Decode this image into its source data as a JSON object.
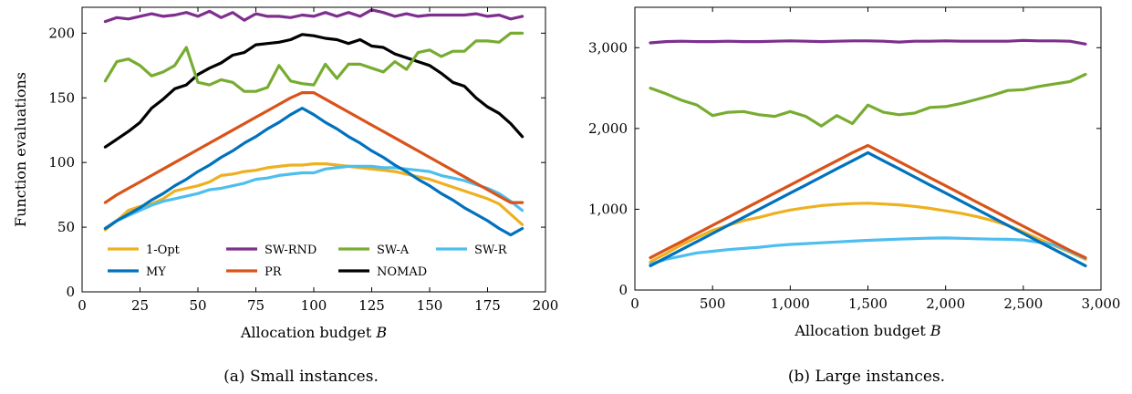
{
  "chart_data": [
    {
      "type": "line",
      "caption": "(a) Small instances.",
      "xlabel": "Allocation budget",
      "xlabel_var": "B",
      "ylabel": "Function evaluations",
      "xlim": [
        0,
        200
      ],
      "ylim": [
        0,
        220
      ],
      "xticks": [
        0,
        25,
        50,
        75,
        100,
        125,
        150,
        175,
        200
      ],
      "yticks": [
        0,
        50,
        100,
        150,
        200
      ],
      "grid": false,
      "legend": "bottom-inside, 4 columns",
      "x": [
        10,
        15,
        20,
        25,
        30,
        35,
        40,
        45,
        50,
        55,
        60,
        65,
        70,
        75,
        80,
        85,
        90,
        95,
        100,
        105,
        110,
        115,
        120,
        125,
        130,
        135,
        140,
        145,
        150,
        155,
        160,
        165,
        170,
        175,
        180,
        185,
        190
      ],
      "series": [
        {
          "name": "1-Opt",
          "color": "#edb120",
          "values": [
            48,
            55,
            63,
            66,
            68,
            72,
            78,
            80,
            82,
            85,
            90,
            91,
            93,
            94,
            96,
            97,
            98,
            98,
            99,
            99,
            98,
            97,
            96,
            95,
            94,
            93,
            91,
            89,
            87,
            84,
            81,
            78,
            75,
            72,
            68,
            60,
            52
          ]
        },
        {
          "name": "SW-RND",
          "color": "#7e2f8e",
          "values": [
            209,
            212,
            211,
            213,
            215,
            213,
            214,
            216,
            213,
            217,
            212,
            216,
            210,
            215,
            213,
            213,
            212,
            214,
            213,
            216,
            213,
            216,
            213,
            218,
            216,
            213,
            215,
            213,
            214,
            214,
            214,
            214,
            215,
            213,
            214,
            211,
            213
          ]
        },
        {
          "name": "SW-A",
          "color": "#77ac30",
          "values": [
            163,
            178,
            180,
            175,
            167,
            170,
            175,
            189,
            162,
            160,
            164,
            162,
            155,
            155,
            158,
            175,
            163,
            161,
            160,
            176,
            165,
            176,
            176,
            173,
            170,
            178,
            172,
            185,
            187,
            182,
            186,
            186,
            194,
            194,
            193,
            200,
            200
          ]
        },
        {
          "name": "SW-R",
          "color": "#4dbeee",
          "values": [
            49,
            55,
            59,
            63,
            67,
            70,
            72,
            74,
            76,
            79,
            80,
            82,
            84,
            87,
            88,
            90,
            91,
            92,
            92,
            95,
            96,
            97,
            97,
            97,
            96,
            96,
            95,
            94,
            93,
            90,
            88,
            86,
            83,
            80,
            76,
            70,
            63
          ]
        },
        {
          "name": "MY",
          "color": "#0072bd",
          "values": [
            49,
            55,
            60,
            65,
            71,
            76,
            82,
            87,
            93,
            98,
            104,
            109,
            115,
            120,
            126,
            131,
            137,
            142,
            137,
            131,
            126,
            120,
            115,
            109,
            104,
            98,
            93,
            87,
            82,
            76,
            71,
            65,
            60,
            55,
            49,
            44,
            49
          ]
        },
        {
          "name": "PR",
          "color": "#d95319",
          "values": [
            69,
            75,
            80,
            85,
            90,
            95,
            100,
            105,
            110,
            115,
            120,
            125,
            130,
            135,
            140,
            145,
            150,
            154,
            154,
            149,
            144,
            139,
            134,
            129,
            124,
            119,
            114,
            109,
            104,
            99,
            94,
            89,
            84,
            79,
            74,
            69,
            69
          ]
        },
        {
          "name": "NOMAD",
          "color": "#000000",
          "values": [
            112,
            118,
            124,
            131,
            142,
            149,
            157,
            160,
            168,
            173,
            177,
            183,
            185,
            191,
            192,
            193,
            195,
            199,
            198,
            196,
            195,
            192,
            195,
            190,
            189,
            184,
            181,
            178,
            175,
            169,
            162,
            159,
            150,
            143,
            138,
            130,
            120
          ]
        }
      ]
    },
    {
      "type": "line",
      "caption": "(b) Large instances.",
      "xlabel": "Allocation budget",
      "xlabel_var": "B",
      "ylabel": "",
      "xlim": [
        0,
        3000
      ],
      "ylim": [
        0,
        3500
      ],
      "xticks": [
        0,
        500,
        1000,
        1500,
        2000,
        2500,
        3000
      ],
      "xtick_labels": [
        "0",
        "500",
        "1,000",
        "1,500",
        "2,000",
        "2,500",
        "3,000"
      ],
      "yticks": [
        0,
        1000,
        2000,
        3000
      ],
      "ytick_labels": [
        "0",
        "1,000",
        "2,000",
        "3,000"
      ],
      "grid": false,
      "x": [
        100,
        200,
        300,
        400,
        500,
        600,
        700,
        800,
        900,
        1000,
        1100,
        1200,
        1300,
        1400,
        1500,
        1600,
        1700,
        1800,
        1900,
        2000,
        2100,
        2200,
        2300,
        2400,
        2500,
        2600,
        2700,
        2800,
        2900
      ],
      "series": [
        {
          "name": "1-Opt",
          "color": "#edb120",
          "values": [
            350,
            450,
            560,
            650,
            740,
            800,
            860,
            900,
            950,
            990,
            1020,
            1045,
            1060,
            1070,
            1075,
            1065,
            1055,
            1035,
            1010,
            980,
            950,
            910,
            860,
            800,
            720,
            630,
            550,
            470,
            380
          ]
        },
        {
          "name": "SW-RND",
          "color": "#7e2f8e",
          "values": [
            3060,
            3075,
            3080,
            3075,
            3075,
            3080,
            3075,
            3075,
            3080,
            3085,
            3080,
            3075,
            3080,
            3085,
            3085,
            3080,
            3070,
            3080,
            3080,
            3085,
            3080,
            3080,
            3080,
            3080,
            3090,
            3085,
            3085,
            3080,
            3045
          ]
        },
        {
          "name": "SW-A",
          "color": "#77ac30",
          "values": [
            2500,
            2430,
            2350,
            2290,
            2160,
            2200,
            2210,
            2170,
            2150,
            2210,
            2150,
            2030,
            2160,
            2060,
            2290,
            2200,
            2170,
            2190,
            2260,
            2270,
            2310,
            2360,
            2410,
            2470,
            2480,
            2520,
            2550,
            2580,
            2670
          ]
        },
        {
          "name": "SW-R",
          "color": "#4dbeee",
          "values": [
            320,
            380,
            420,
            460,
            480,
            500,
            515,
            530,
            550,
            565,
            575,
            585,
            595,
            605,
            615,
            622,
            630,
            637,
            642,
            645,
            640,
            635,
            630,
            628,
            620,
            590,
            560,
            480,
            390
          ]
        },
        {
          "name": "MY",
          "color": "#0072bd",
          "values": [
            300,
            400,
            500,
            600,
            700,
            800,
            900,
            1000,
            1100,
            1200,
            1300,
            1400,
            1500,
            1600,
            1700,
            1600,
            1500,
            1400,
            1300,
            1200,
            1100,
            1000,
            900,
            800,
            700,
            600,
            500,
            400,
            300
          ]
        },
        {
          "name": "PR",
          "color": "#d95319",
          "values": [
            400,
            500,
            600,
            700,
            800,
            900,
            1000,
            1100,
            1200,
            1300,
            1400,
            1500,
            1600,
            1700,
            1790,
            1690,
            1590,
            1490,
            1390,
            1290,
            1190,
            1090,
            990,
            890,
            790,
            690,
            590,
            490,
            400
          ]
        }
      ]
    }
  ]
}
